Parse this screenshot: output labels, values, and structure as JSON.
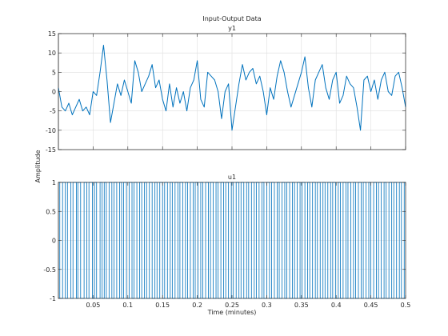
{
  "figure": {
    "title": "Input-Output Data",
    "ylabel": "Amplitude",
    "xlabel": "Time (minutes)"
  },
  "chart_data": [
    {
      "type": "line",
      "title": "y1",
      "xlabel": "Time (minutes)",
      "ylabel": "Amplitude",
      "xlim": [
        0.0,
        0.5
      ],
      "ylim": [
        -15,
        15
      ],
      "xticks": [
        0.05,
        0.1,
        0.15,
        0.2,
        0.25,
        0.3,
        0.35,
        0.4,
        0.45,
        0.5
      ],
      "xtick_labels": [
        "0.05",
        "0.1",
        "0.15",
        "0.2",
        "0.25",
        "0.3",
        "0.35",
        "0.4",
        "0.45",
        "0.5"
      ],
      "show_xtick_labels": false,
      "yticks": [
        -15,
        -10,
        -5,
        0,
        5,
        10,
        15
      ],
      "ytick_labels": [
        "-15",
        "-10",
        "-5",
        "0",
        "5",
        "10",
        "15"
      ],
      "grid": true,
      "color": "#0072bd",
      "series": [
        {
          "x": [
            0.0,
            0.005,
            0.01,
            0.015,
            0.02,
            0.025,
            0.03,
            0.035,
            0.04,
            0.045,
            0.05,
            0.055,
            0.06,
            0.065,
            0.07,
            0.075,
            0.08,
            0.085,
            0.09,
            0.095,
            0.1,
            0.105,
            0.11,
            0.115,
            0.12,
            0.125,
            0.13,
            0.135,
            0.14,
            0.145,
            0.15,
            0.155,
            0.16,
            0.165,
            0.17,
            0.175,
            0.18,
            0.185,
            0.19,
            0.195,
            0.2,
            0.205,
            0.21,
            0.215,
            0.22,
            0.225,
            0.23,
            0.235,
            0.24,
            0.245,
            0.25,
            0.255,
            0.26,
            0.265,
            0.27,
            0.275,
            0.28,
            0.285,
            0.29,
            0.295,
            0.3,
            0.305,
            0.31,
            0.315,
            0.32,
            0.325,
            0.33,
            0.335,
            0.34,
            0.345,
            0.35,
            0.355,
            0.36,
            0.365,
            0.37,
            0.375,
            0.38,
            0.385,
            0.39,
            0.395,
            0.4,
            0.405,
            0.41,
            0.415,
            0.42,
            0.425,
            0.43,
            0.435,
            0.44,
            0.445,
            0.45,
            0.455,
            0.46,
            0.465,
            0.47,
            0.475,
            0.48,
            0.485,
            0.49,
            0.495,
            0.5
          ],
          "y": [
            1,
            -4,
            -5,
            -3,
            -6,
            -4,
            -2,
            -5,
            -4,
            -6,
            0,
            -1,
            5,
            12,
            3,
            -8,
            -3,
            2,
            -1,
            3,
            0,
            -3,
            8,
            5,
            0,
            2,
            4,
            7,
            1,
            3,
            -2,
            -5,
            2,
            -4,
            1,
            -3,
            0,
            -5,
            1,
            3,
            8,
            -2,
            -4,
            5,
            4,
            3,
            0,
            -7,
            0,
            2,
            -10,
            -4,
            2,
            7,
            3,
            5,
            6,
            2,
            4,
            0,
            -6,
            1,
            -2,
            4,
            8,
            5,
            0,
            -4,
            -1,
            2,
            5,
            9,
            1,
            -4,
            3,
            5,
            7,
            1,
            -2,
            3,
            5,
            -3,
            -1,
            4,
            2,
            1,
            -4,
            -10,
            3,
            4,
            0,
            3,
            -2,
            3,
            5,
            0,
            -1,
            4,
            5,
            1,
            -4
          ]
        }
      ]
    },
    {
      "type": "line",
      "title": "u1",
      "xlabel": "Time (minutes)",
      "xlim": [
        0.0,
        0.5
      ],
      "ylim": [
        -1,
        1
      ],
      "xticks": [
        0.05,
        0.1,
        0.15,
        0.2,
        0.25,
        0.3,
        0.35,
        0.4,
        0.45,
        0.5
      ],
      "xtick_labels": [
        "0.05",
        "0.1",
        "0.15",
        "0.2",
        "0.25",
        "0.3",
        "0.35",
        "0.4",
        "0.45",
        "0.5"
      ],
      "show_xtick_labels": true,
      "yticks": [
        -1,
        -0.5,
        0,
        0.5,
        1
      ],
      "ytick_labels": [
        "-1",
        "-0.5",
        "0",
        "0.5",
        "1"
      ],
      "grid": true,
      "color": "#0072bd",
      "step": true,
      "initial_level": 1,
      "switch_times": [
        0.002,
        0.006,
        0.01,
        0.013,
        0.018,
        0.021,
        0.026,
        0.028,
        0.032,
        0.037,
        0.041,
        0.044,
        0.049,
        0.052,
        0.055,
        0.06,
        0.063,
        0.066,
        0.069,
        0.073,
        0.077,
        0.08,
        0.084,
        0.088,
        0.091,
        0.094,
        0.098,
        0.102,
        0.106,
        0.109,
        0.113,
        0.117,
        0.12,
        0.124,
        0.127,
        0.131,
        0.135,
        0.139,
        0.142,
        0.146,
        0.15,
        0.153,
        0.157,
        0.161,
        0.164,
        0.168,
        0.172,
        0.175,
        0.179,
        0.183,
        0.186,
        0.19,
        0.194,
        0.197,
        0.201,
        0.205,
        0.208,
        0.212,
        0.216,
        0.219,
        0.223,
        0.227,
        0.23,
        0.234,
        0.238,
        0.241,
        0.245,
        0.249,
        0.252,
        0.256,
        0.26,
        0.263,
        0.267,
        0.271,
        0.274,
        0.278,
        0.282,
        0.285,
        0.289,
        0.293,
        0.296,
        0.3,
        0.304,
        0.307,
        0.311,
        0.315,
        0.318,
        0.322,
        0.326,
        0.329,
        0.333,
        0.337,
        0.34,
        0.344,
        0.348,
        0.351,
        0.355,
        0.359,
        0.362,
        0.366,
        0.37,
        0.373,
        0.377,
        0.381,
        0.384,
        0.388,
        0.392,
        0.395,
        0.399,
        0.403,
        0.406,
        0.41,
        0.414,
        0.417,
        0.421,
        0.425,
        0.428,
        0.432,
        0.436,
        0.439,
        0.443,
        0.447,
        0.45,
        0.454,
        0.458,
        0.461,
        0.465,
        0.469,
        0.472,
        0.476,
        0.48,
        0.483,
        0.487,
        0.491,
        0.494,
        0.498
      ]
    }
  ]
}
